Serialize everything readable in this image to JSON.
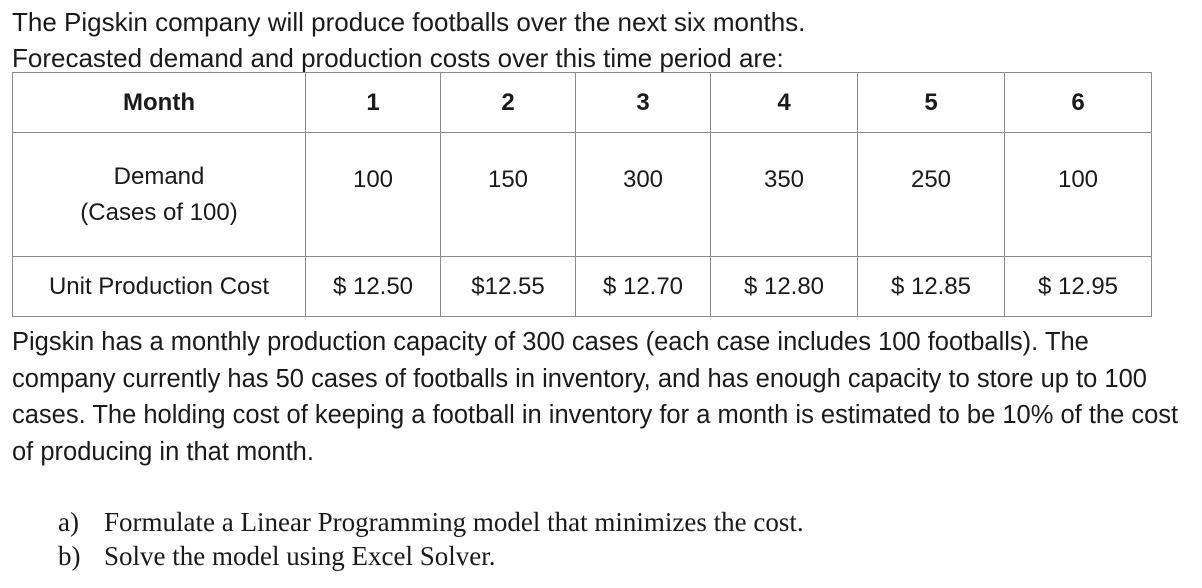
{
  "intro": {
    "line1": "The Pigskin company will produce footballs over the next six months.",
    "line2": "Forecasted demand and production costs over this time period are:"
  },
  "table": {
    "header_label": "Month",
    "months": [
      "1",
      "2",
      "3",
      "4",
      "5",
      "6"
    ],
    "demand_label_line1": "Demand",
    "demand_label_line2": "(Cases of 100)",
    "demand": [
      "100",
      "150",
      "300",
      "350",
      "250",
      "100"
    ],
    "cost_label": "Unit Production Cost",
    "cost": [
      "$ 12.50",
      "$12.55",
      "$ 12.70",
      "$ 12.80",
      "$ 12.85",
      "$ 12.95"
    ]
  },
  "paragraph": "Pigskin has a monthly production capacity of 300 cases (each case includes 100 footballs).  The company currently has 50 cases of footballs in inventory, and has enough capacity to store up to 100 cases.  The holding cost of keeping a football in inventory for a month is estimated to be 10% of the cost of producing in that month.",
  "questions": [
    {
      "marker": "a)",
      "text": "Formulate a Linear Programming model that minimizes the cost."
    },
    {
      "marker": "b)",
      "text": "Solve the model using Excel Solver."
    }
  ]
}
